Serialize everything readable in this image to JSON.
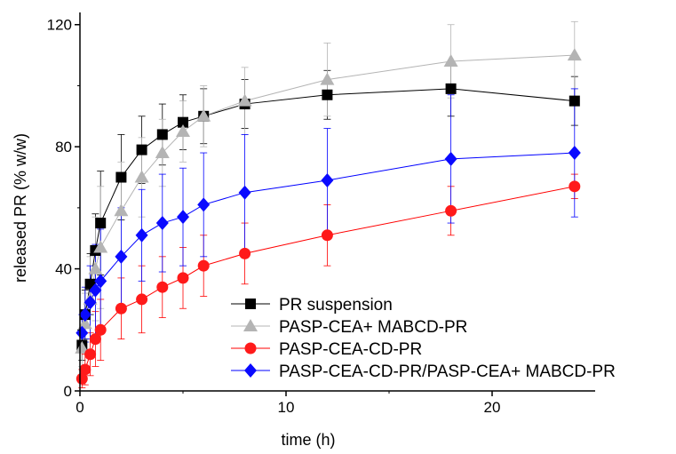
{
  "chart_data": {
    "type": "line",
    "title": "",
    "xlabel": "time (h)",
    "ylabel": "released PR (% w/w)",
    "xlim": [
      0,
      25
    ],
    "ylim": [
      0,
      124
    ],
    "x_ticks": [
      0,
      10,
      20
    ],
    "y_ticks": [
      0,
      40,
      80,
      120
    ],
    "legend_position": "bottom-right",
    "series": [
      {
        "name": "PR suspension",
        "color": "#000000",
        "line_color": "#000000",
        "marker": "square",
        "x": [
          0.1,
          0.25,
          0.5,
          0.75,
          1,
          2,
          3,
          4,
          5,
          6,
          8,
          12,
          18,
          24
        ],
        "y": [
          15,
          25,
          35,
          46,
          55,
          70,
          79,
          84,
          88,
          90,
          94,
          97,
          99,
          95
        ],
        "err": [
          5,
          8,
          10,
          12,
          17,
          14,
          11,
          10,
          9,
          9,
          8,
          8,
          9,
          8
        ]
      },
      {
        "name": "PASP-CEA+ MABCD-PR",
        "color": "#b4b4b4",
        "line_color": "#b4b4b4",
        "marker": "triangle",
        "x": [
          0.1,
          0.25,
          0.5,
          0.75,
          1,
          2,
          3,
          4,
          5,
          6,
          8,
          12,
          18,
          24
        ],
        "y": [
          14,
          22,
          30,
          40,
          47,
          59,
          70,
          78,
          85,
          90,
          95,
          102,
          108,
          110
        ],
        "err": [
          6,
          10,
          14,
          17,
          20,
          16,
          13,
          11,
          10,
          10,
          11,
          12,
          12,
          11
        ]
      },
      {
        "name": "PASP-CEA-CD-PR",
        "color": "#ff1a1a",
        "line_color": "#ff0000",
        "marker": "circle",
        "x": [
          0.1,
          0.25,
          0.5,
          0.75,
          1,
          2,
          3,
          4,
          5,
          6,
          8,
          12,
          18,
          24
        ],
        "y": [
          4,
          7,
          12,
          17,
          20,
          27,
          30,
          34,
          37,
          41,
          45,
          51,
          59,
          67
        ],
        "err": [
          3,
          5,
          7,
          9,
          10,
          10,
          11,
          10,
          10,
          10,
          10,
          10,
          8,
          4
        ]
      },
      {
        "name": "PASP-CEA-CD-PR/PASP-CEA+ MABCD-PR",
        "color": "#0a0aff",
        "line_color": "#0000ff",
        "marker": "diamond",
        "x": [
          0.1,
          0.25,
          0.5,
          0.75,
          1,
          2,
          3,
          4,
          5,
          6,
          8,
          12,
          18,
          24
        ],
        "y": [
          19,
          25,
          29,
          33,
          36,
          44,
          51,
          55,
          57,
          61,
          65,
          69,
          76,
          78
        ],
        "err": [
          6,
          9,
          12,
          15,
          17,
          16,
          15,
          16,
          16,
          17,
          19,
          17,
          21,
          21
        ]
      }
    ]
  }
}
